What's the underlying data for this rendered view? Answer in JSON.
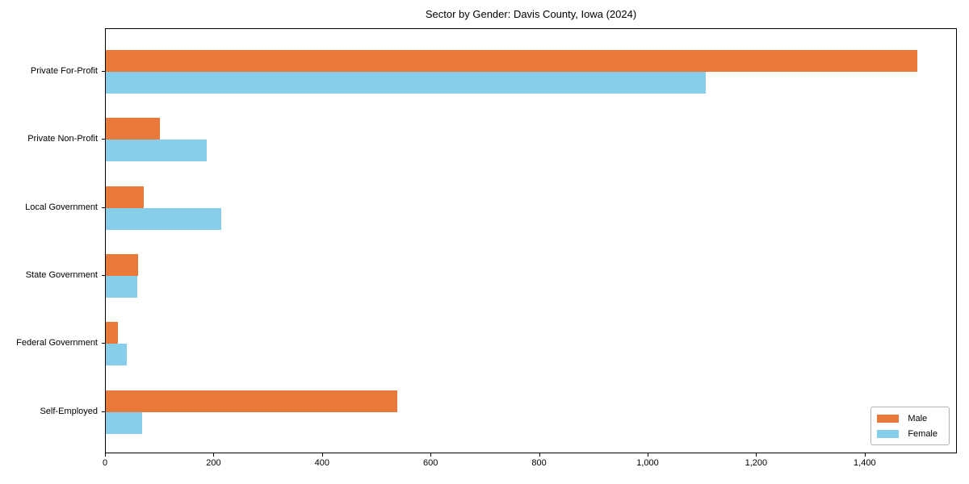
{
  "chart_data": {
    "type": "bar",
    "orientation": "horizontal",
    "title": "Sector by Gender: Davis County, Iowa (2024)",
    "categories": [
      "Private For-Profit",
      "Private Non-Profit",
      "Local Government",
      "State Government",
      "Federal Government",
      "Self-Employed"
    ],
    "series": [
      {
        "name": "Male",
        "color": "#E8793B",
        "values": [
          1495,
          100,
          70,
          60,
          22,
          537
        ]
      },
      {
        "name": "Female",
        "color": "#87CEEB",
        "values": [
          1105,
          186,
          213,
          58,
          39,
          67
        ]
      }
    ],
    "xlabel": "",
    "ylabel": "",
    "xlim": [
      0,
      1570
    ],
    "xticks": [
      0,
      200,
      400,
      600,
      800,
      1000,
      1200,
      1400
    ],
    "xtick_labels": [
      "0",
      "200",
      "400",
      "600",
      "800",
      "1,000",
      "1,200",
      "1,400"
    ],
    "grid": false,
    "legend": {
      "entries": [
        "Male",
        "Female"
      ],
      "position": "lower right"
    },
    "colors": {
      "background": "#ffffff",
      "axis": "#000000",
      "text": "#000000",
      "legend_border": "#b3b3b3"
    }
  }
}
